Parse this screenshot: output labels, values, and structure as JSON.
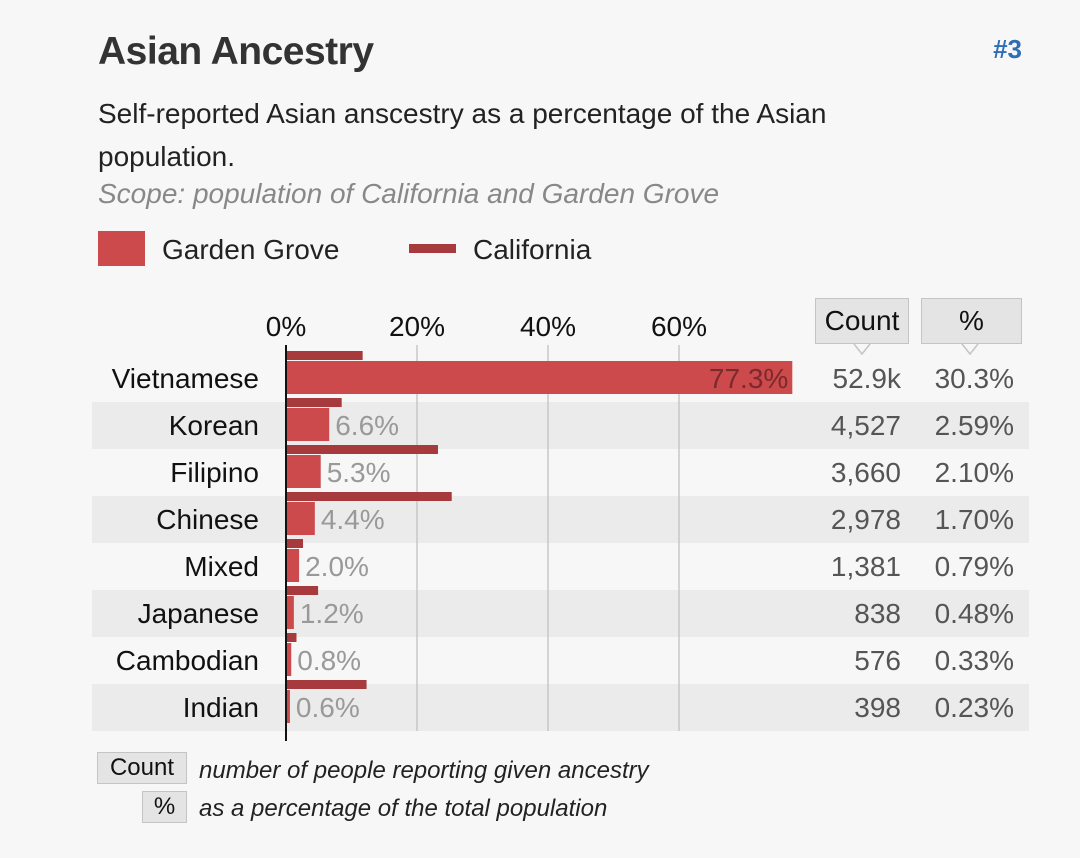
{
  "header": {
    "title": "Asian Ancestry",
    "rank": "#3",
    "subtitle": "Self-reported Asian anscestry as a percentage of the Asian population.",
    "scope": "Scope: population of California and Garden Grove"
  },
  "legend": {
    "local_label": "Garden Grove",
    "state_label": "California"
  },
  "colors": {
    "local_bar": "#cc4a4c",
    "state_bar": "#a63a3c",
    "background": "#f7f7f7",
    "row_stripe": "#ebebeb",
    "rank_link": "#2f6eb5"
  },
  "table_headers": {
    "count": "Count",
    "percent": "%"
  },
  "footnotes": {
    "count_button": "Count",
    "count_text": "number of people reporting given ancestry",
    "percent_button": "%",
    "percent_text": "as a percentage of the total population"
  },
  "chart_data": {
    "type": "bar",
    "orientation": "horizontal",
    "xlim": [
      0,
      80
    ],
    "x_ticks": [
      0,
      20,
      40,
      60
    ],
    "x_tick_labels": [
      "0%",
      "20%",
      "40%",
      "60%"
    ],
    "grid": true,
    "legend_placement": "top-left",
    "categories": [
      "Vietnamese",
      "Korean",
      "Filipino",
      "Chinese",
      "Mixed",
      "Japanese",
      "Cambodian",
      "Indian"
    ],
    "series": [
      {
        "name": "Garden Grove",
        "values": [
          77.3,
          6.6,
          5.3,
          4.4,
          2.0,
          1.2,
          0.8,
          0.6
        ],
        "labels": [
          "77.3%",
          "6.6%",
          "5.3%",
          "4.4%",
          "2.0%",
          "1.2%",
          "0.8%",
          "0.6%"
        ]
      },
      {
        "name": "California",
        "values": [
          11.7,
          8.5,
          23.2,
          25.3,
          2.6,
          4.9,
          1.6,
          12.3
        ]
      }
    ],
    "counts": [
      "52.9k",
      "4,527",
      "3,660",
      "2,978",
      "1,381",
      "838",
      "576",
      "398"
    ],
    "percents": [
      "30.3%",
      "2.59%",
      "2.10%",
      "1.70%",
      "0.79%",
      "0.48%",
      "0.33%",
      "0.23%"
    ]
  }
}
